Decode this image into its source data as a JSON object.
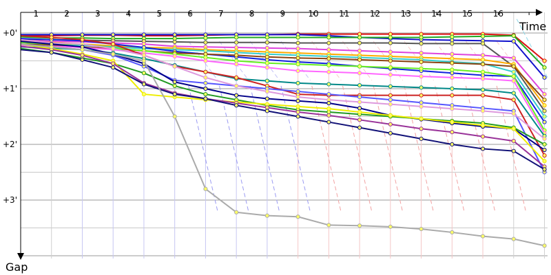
{
  "chart_data": {
    "type": "line",
    "x_axis_label": "Time",
    "y_axis_label": "Gap",
    "x_tick_labels": [
      "1",
      "2",
      "3",
      "4",
      "5",
      "6",
      "7",
      "8",
      "9",
      "10",
      "11",
      "12",
      "13",
      "14",
      "15",
      "16"
    ],
    "y_tick_labels": [
      "+0'",
      "+1'",
      "+2'",
      "+3'"
    ],
    "x_range": [
      0,
      17.1
    ],
    "y_range_minutes": [
      -0.37,
      4.05
    ],
    "grid": true,
    "legend": "none",
    "colors": {
      "blue_gridline": "#c6c6f2",
      "red_gridline": "#f4c6c6",
      "blue_connector": "#9a9af2",
      "red_connector": "#f2a2a2",
      "cyan_connector": "#8fd8e8"
    },
    "connector_start_x": 5.45,
    "series": [
      {
        "color": "#dd1111",
        "values": [
          0.04,
          0.05,
          0.04,
          0.04,
          0.05,
          0.05,
          0.04,
          0.03,
          0.03,
          0.02,
          0.02,
          0.02,
          0.02,
          0.02,
          0.02,
          0.02,
          0.04,
          0.5
        ]
      },
      {
        "color": "#1111cc",
        "values": [
          0.03,
          0.03,
          0.03,
          0.03,
          0.03,
          0.03,
          0.03,
          0.03,
          0.03,
          0.03,
          0.05,
          0.08,
          0.1,
          0.12,
          0.13,
          0.14,
          0.15,
          0.8
        ]
      },
      {
        "color": "#22aa22",
        "values": [
          0.07,
          0.09,
          0.09,
          0.1,
          0.1,
          0.1,
          0.09,
          0.08,
          0.08,
          0.08,
          0.08,
          0.08,
          0.08,
          0.08,
          0.07,
          0.06,
          0.05,
          0.62
        ]
      },
      {
        "color": "#555555",
        "values": [
          0.11,
          0.12,
          0.13,
          0.14,
          0.15,
          0.16,
          0.17,
          0.17,
          0.17,
          0.18,
          0.18,
          0.18,
          0.18,
          0.19,
          0.19,
          0.19,
          0.6,
          1.4
        ]
      },
      {
        "color": "#dd44dd",
        "values": [
          0.13,
          0.15,
          0.16,
          0.18,
          0.2,
          0.24,
          0.25,
          0.26,
          0.27,
          0.28,
          0.3,
          0.32,
          0.34,
          0.36,
          0.38,
          0.4,
          0.45,
          1.1
        ]
      },
      {
        "color": "#ffaa00",
        "values": [
          0.15,
          0.17,
          0.2,
          0.23,
          0.26,
          0.27,
          0.3,
          0.32,
          0.34,
          0.36,
          0.38,
          0.4,
          0.42,
          0.44,
          0.46,
          0.48,
          0.56,
          1.3
        ]
      },
      {
        "color": "#33cccc",
        "values": [
          0.17,
          0.2,
          0.22,
          0.25,
          0.28,
          0.3,
          0.32,
          0.35,
          0.38,
          0.4,
          0.42,
          0.44,
          0.46,
          0.48,
          0.52,
          0.55,
          0.7,
          1.5
        ]
      },
      {
        "color": "#1122dd",
        "values": [
          0.1,
          0.12,
          0.14,
          0.2,
          0.26,
          0.33,
          0.38,
          0.43,
          0.48,
          0.52,
          0.55,
          0.6,
          0.64,
          0.68,
          0.72,
          0.76,
          0.78,
          1.6
        ]
      },
      {
        "color": "#8b4513",
        "values": [
          0.2,
          0.22,
          0.25,
          0.28,
          0.32,
          0.36,
          0.38,
          0.4,
          0.43,
          0.45,
          0.46,
          0.48,
          0.5,
          0.52,
          0.54,
          0.56,
          0.6,
          1.2
        ]
      },
      {
        "color": "#66ee22",
        "values": [
          0.17,
          0.2,
          0.2,
          0.27,
          0.32,
          0.38,
          0.44,
          0.5,
          0.54,
          0.56,
          0.58,
          0.6,
          0.62,
          0.64,
          0.66,
          0.7,
          0.78,
          1.75
        ]
      },
      {
        "color": "#ff66ff",
        "values": [
          0.22,
          0.24,
          0.26,
          0.3,
          0.36,
          0.42,
          0.5,
          0.56,
          0.62,
          0.68,
          0.7,
          0.72,
          0.75,
          0.78,
          0.8,
          0.82,
          0.86,
          1.8
        ]
      },
      {
        "color": "#008888",
        "values": [
          0.25,
          0.27,
          0.3,
          0.36,
          0.46,
          0.58,
          0.7,
          0.82,
          0.86,
          0.9,
          0.92,
          0.94,
          0.96,
          0.98,
          1.0,
          1.02,
          1.08,
          1.85
        ]
      },
      {
        "color": "#cc2222",
        "values": [
          0.05,
          0.08,
          0.12,
          0.2,
          0.4,
          0.6,
          0.7,
          0.8,
          0.95,
          1.1,
          1.12,
          1.12,
          1.12,
          1.12,
          1.12,
          1.12,
          1.2,
          2.2
        ]
      },
      {
        "color": "#5555ff",
        "values": [
          0.2,
          0.25,
          0.3,
          0.4,
          0.6,
          0.85,
          0.9,
          0.95,
          1.0,
          1.05,
          1.1,
          1.15,
          1.2,
          1.25,
          1.3,
          1.35,
          1.4,
          2.5
        ]
      },
      {
        "color": "#dd99dd",
        "values": [
          0.12,
          0.18,
          0.2,
          0.28,
          0.4,
          0.6,
          0.8,
          0.95,
          1.05,
          1.15,
          1.2,
          1.24,
          1.28,
          1.32,
          1.36,
          1.4,
          1.45,
          1.9
        ]
      },
      {
        "color": "#000088",
        "values": [
          0.15,
          0.2,
          0.25,
          0.38,
          0.55,
          0.88,
          1.0,
          1.12,
          1.18,
          1.22,
          1.26,
          1.35,
          1.48,
          1.55,
          1.62,
          1.68,
          1.72,
          2.1
        ]
      },
      {
        "color": "#229922",
        "values": [
          0.28,
          0.35,
          0.45,
          0.55,
          0.72,
          0.95,
          1.1,
          1.2,
          1.3,
          1.38,
          1.42,
          1.46,
          1.5,
          1.54,
          1.58,
          1.62,
          1.7,
          2.0
        ]
      },
      {
        "color": "#eeee00",
        "values": [
          0.2,
          0.28,
          0.38,
          0.5,
          1.1,
          1.15,
          1.2,
          1.24,
          1.28,
          1.32,
          1.36,
          1.42,
          1.48,
          1.54,
          1.6,
          1.66,
          1.72,
          2.3
        ]
      },
      {
        "color": "#993399",
        "values": [
          0.24,
          0.3,
          0.4,
          0.55,
          0.9,
          1.08,
          1.18,
          1.26,
          1.34,
          1.42,
          1.48,
          1.56,
          1.64,
          1.72,
          1.78,
          1.86,
          1.94,
          2.4
        ]
      },
      {
        "color": "#111177",
        "values": [
          0.3,
          0.35,
          0.48,
          0.62,
          0.92,
          1.1,
          1.18,
          1.3,
          1.4,
          1.5,
          1.6,
          1.7,
          1.8,
          1.9,
          2.0,
          2.08,
          2.12,
          2.45
        ]
      },
      {
        "color": "#aaaaaa",
        "values": [
          0.2,
          0.25,
          0.3,
          0.38,
          0.5,
          1.5,
          2.8,
          3.22,
          3.28,
          3.3,
          3.45,
          3.46,
          3.48,
          3.52,
          3.58,
          3.65,
          3.7,
          3.82
        ]
      }
    ]
  }
}
